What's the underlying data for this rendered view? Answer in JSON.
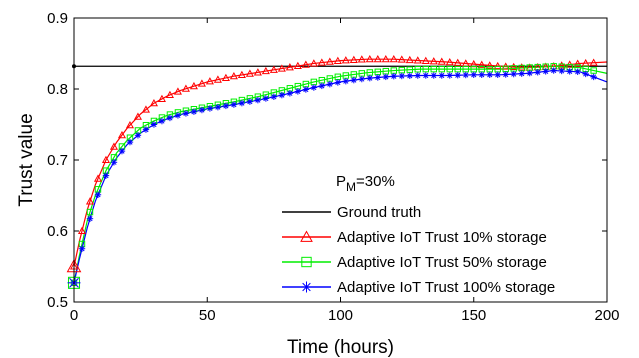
{
  "chart_data": {
    "type": "line",
    "xlabel": "Time (hours)",
    "ylabel": "Trust value",
    "xlim": [
      0,
      200
    ],
    "ylim": [
      0.5,
      0.9
    ],
    "xticks": [
      0,
      50,
      100,
      150,
      200
    ],
    "yticks": [
      0.5,
      0.6,
      0.7,
      0.8,
      0.9
    ],
    "xtick_labels": [
      "0",
      "50",
      "100",
      "150",
      "200"
    ],
    "ytick_labels": [
      "0.5",
      "0.6",
      "0.7",
      "0.8",
      "0.9"
    ],
    "grid": false,
    "legend_position": "bottom-right",
    "annotation": {
      "base": "P",
      "subscript": "M",
      "text": "=30%"
    },
    "series": [
      {
        "name": "Ground truth",
        "color": "#000000",
        "marker": "none",
        "x": [
          0,
          200
        ],
        "y": [
          0.832,
          0.832
        ]
      },
      {
        "name": "Adaptive IoT Trust 10% storage",
        "color": "#ff0000",
        "marker": "triangle",
        "x": [
          0,
          2,
          5,
          8,
          12,
          16,
          20,
          25,
          30,
          35,
          40,
          50,
          60,
          70,
          80,
          90,
          100,
          110,
          120,
          130,
          140,
          150,
          160,
          170,
          180,
          190,
          200
        ],
        "y": [
          0.55,
          0.585,
          0.63,
          0.665,
          0.7,
          0.725,
          0.745,
          0.765,
          0.78,
          0.79,
          0.798,
          0.81,
          0.818,
          0.824,
          0.83,
          0.836,
          0.84,
          0.842,
          0.842,
          0.84,
          0.838,
          0.835,
          0.832,
          0.83,
          0.832,
          0.836,
          0.838
        ]
      },
      {
        "name": "Adaptive IoT Trust 50% storage",
        "color": "#00ee00",
        "marker": "square",
        "x": [
          0,
          2,
          5,
          8,
          12,
          16,
          20,
          25,
          30,
          35,
          40,
          50,
          60,
          70,
          80,
          90,
          100,
          110,
          120,
          130,
          140,
          150,
          160,
          170,
          180,
          190,
          200
        ],
        "y": [
          0.527,
          0.565,
          0.615,
          0.65,
          0.685,
          0.71,
          0.728,
          0.745,
          0.755,
          0.763,
          0.768,
          0.775,
          0.782,
          0.79,
          0.8,
          0.81,
          0.818,
          0.823,
          0.826,
          0.828,
          0.828,
          0.828,
          0.828,
          0.83,
          0.832,
          0.83,
          0.822
        ]
      },
      {
        "name": "Adaptive IoT Trust 100% storage",
        "color": "#0000ff",
        "marker": "asterisk",
        "x": [
          0,
          2,
          5,
          8,
          12,
          16,
          20,
          25,
          30,
          35,
          40,
          50,
          60,
          70,
          80,
          90,
          100,
          110,
          120,
          130,
          140,
          150,
          160,
          170,
          180,
          190,
          200
        ],
        "y": [
          0.527,
          0.56,
          0.605,
          0.642,
          0.678,
          0.703,
          0.722,
          0.738,
          0.75,
          0.758,
          0.764,
          0.772,
          0.778,
          0.785,
          0.793,
          0.802,
          0.81,
          0.815,
          0.818,
          0.819,
          0.819,
          0.82,
          0.82,
          0.822,
          0.826,
          0.824,
          0.81
        ]
      }
    ]
  }
}
